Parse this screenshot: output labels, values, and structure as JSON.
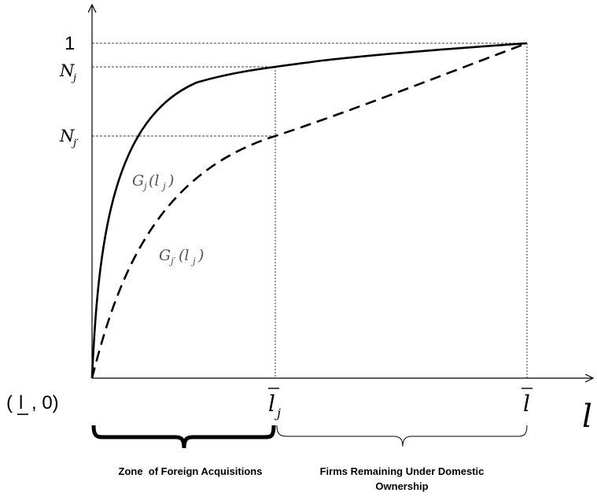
{
  "axes": {
    "y_tick_top": "1",
    "origin_label": "( l , 0)",
    "x_axis_label": "l"
  },
  "levels": {
    "n_j": "N_j",
    "n_jprime": "N_j'"
  },
  "x_ticks": {
    "l_bar_j": "l̄_j",
    "l_bar": "l̄"
  },
  "curves": {
    "solid_label": "G_j(l_j)",
    "dashed_label": "G_j'(l_j)"
  },
  "zones": {
    "left": "Zone  of Foreign Acquisitions",
    "right_line1": "Firms Remaining Under Domestic",
    "right_line2": "Ownership"
  }
}
